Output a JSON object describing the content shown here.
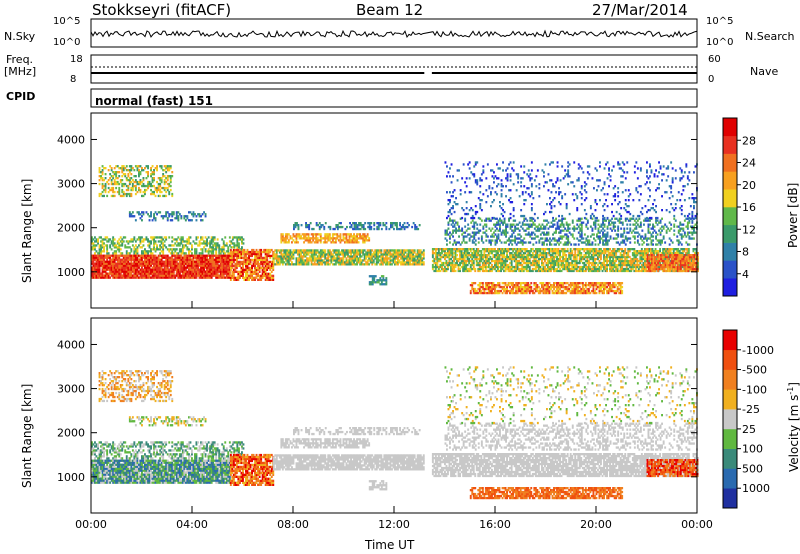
{
  "header": {
    "station": "Stokkseyri (fitACF)",
    "beam": "Beam 12",
    "date": "27/Mar/2014"
  },
  "meta_panels": {
    "nsky_label": "N.Sky",
    "nsky_ticks": [
      "10^5",
      "10^0"
    ],
    "nsearch_label": "N.Search",
    "nsearch_ticks": [
      "10^5",
      "10^0"
    ],
    "freq_label": "Freq.",
    "freq_unit": "[MHz]",
    "freq_ticks": [
      "18",
      "8"
    ],
    "nave_label": "Nave",
    "nave_ticks": [
      "60",
      "0"
    ],
    "cpid_label": "CPID",
    "cpid_value": "normal (fast) 151"
  },
  "chart_data": [
    {
      "type": "heatmap",
      "panel": "power",
      "xlabel": "Time UT",
      "ylabel": "Slant Range [km]",
      "x_ticks": [
        "00:00",
        "04:00",
        "08:00",
        "12:00",
        "16:00",
        "20:00",
        "00:00"
      ],
      "x_range_hours": [
        0,
        24
      ],
      "y_ticks": [
        1000,
        2000,
        3000,
        4000
      ],
      "ylim": [
        180,
        4600
      ],
      "data_gap_hours": [
        13.2,
        13.5
      ],
      "colorbar": {
        "label": "Power [dB]",
        "ticks": [
          "4",
          "8",
          "12",
          "16",
          "20",
          "24",
          "28"
        ],
        "colors": [
          "#1f1fe0",
          "#2a52c8",
          "#2f80a8",
          "#3a9a6a",
          "#60b84a",
          "#f0d020",
          "#f7a020",
          "#f07020",
          "#e83020",
          "#e00000"
        ]
      }
    },
    {
      "type": "heatmap",
      "panel": "velocity",
      "xlabel": "Time UT",
      "ylabel": "Slant Range [km]",
      "x_ticks": [
        "00:00",
        "04:00",
        "08:00",
        "12:00",
        "16:00",
        "20:00",
        "00:00"
      ],
      "x_range_hours": [
        0,
        24
      ],
      "y_ticks": [
        1000,
        2000,
        3000,
        4000
      ],
      "ylim": [
        180,
        4600
      ],
      "data_gap_hours": [
        13.2,
        13.5
      ],
      "colorbar": {
        "label": "Velocity [m s",
        "label_sup": "-1",
        "label_end": "]",
        "ticks": [
          "1000",
          "500",
          "100",
          "25",
          "-25",
          "-100",
          "-500",
          "-1000"
        ],
        "colors": [
          "#2030a0",
          "#2a6ab0",
          "#3a8a7a",
          "#60b840",
          "#c8c8c8",
          "#f0b020",
          "#f08020",
          "#f05010",
          "#e80000"
        ]
      }
    }
  ]
}
